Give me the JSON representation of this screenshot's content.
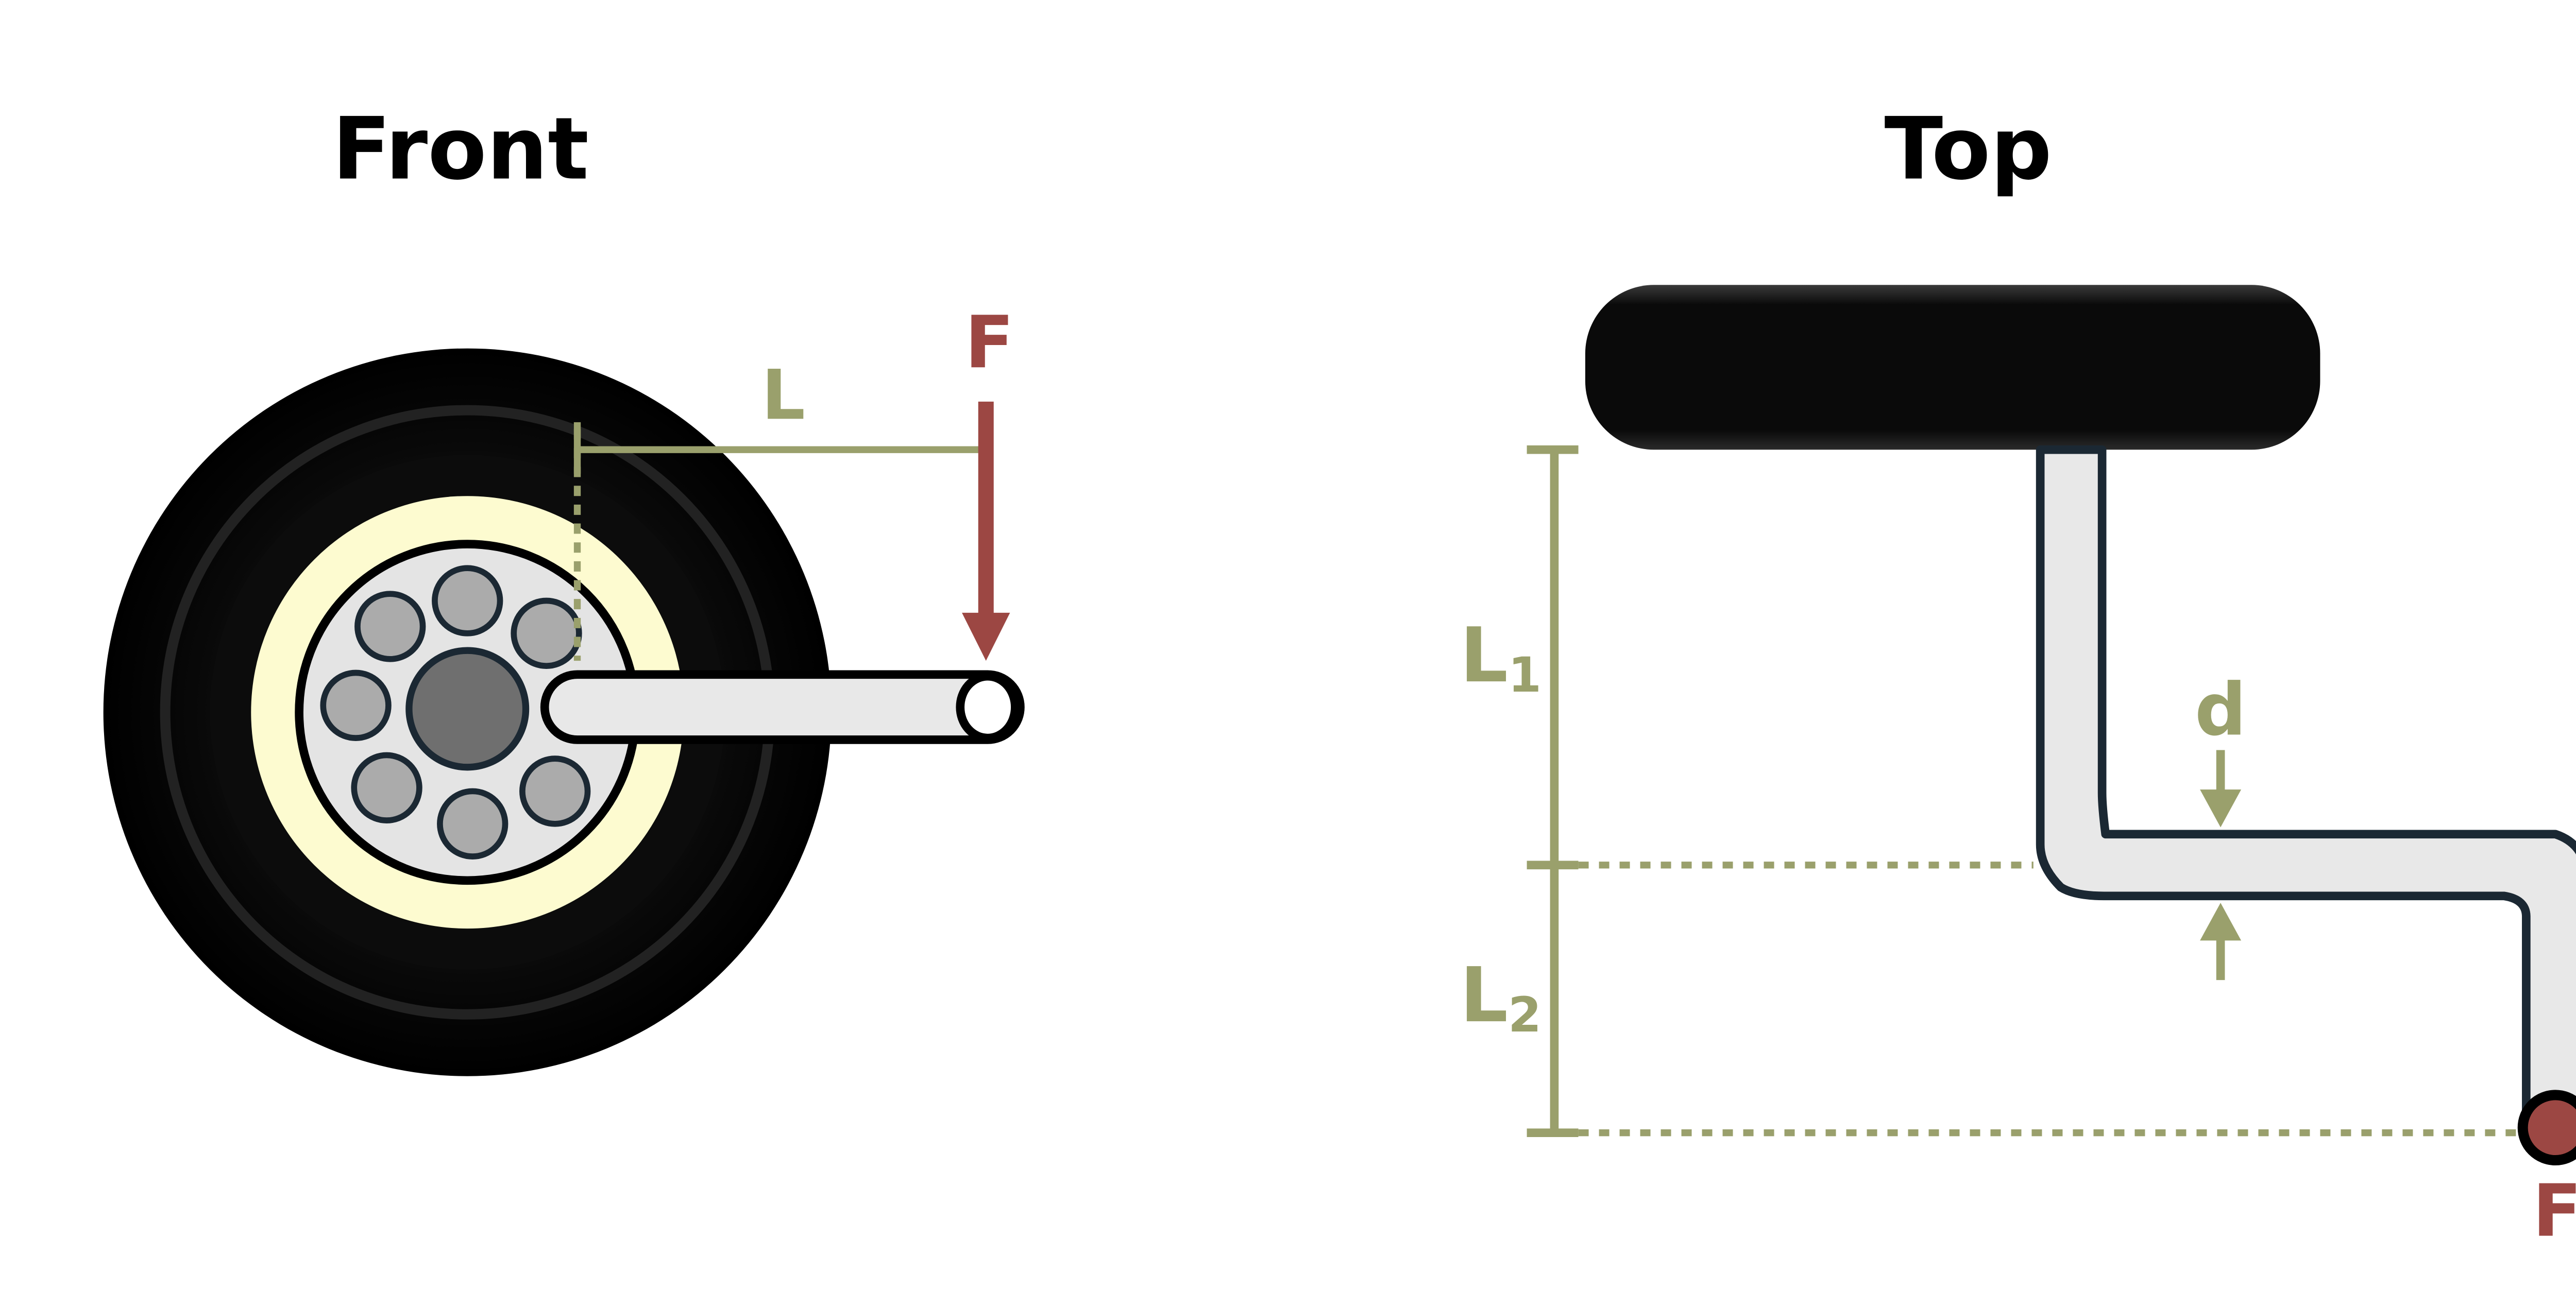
{
  "views": {
    "front": {
      "title": "Front"
    },
    "top": {
      "title": "Top"
    }
  },
  "labels": {
    "force_front": "F",
    "lever_length": "L",
    "length_1": "L",
    "length_1_sub": "1",
    "length_2": "L",
    "length_2_sub": "2",
    "diameter": "d",
    "force_top": "F"
  },
  "colors": {
    "force": "#9c4743",
    "dimension": "#9aa06c",
    "tire": "#050505",
    "hub_ring": "#fdfbd0",
    "wheel_face": "#e4e4e4",
    "bolt": "#ababab",
    "center_hub": "#6f6f6f",
    "shaft_fill": "#e8e8e8",
    "shaft_outline": "#1b2833"
  },
  "icons": {
    "wheel": "wheel-front-icon",
    "handle": "handle-grip-icon",
    "arrow": "force-arrow-icon"
  }
}
